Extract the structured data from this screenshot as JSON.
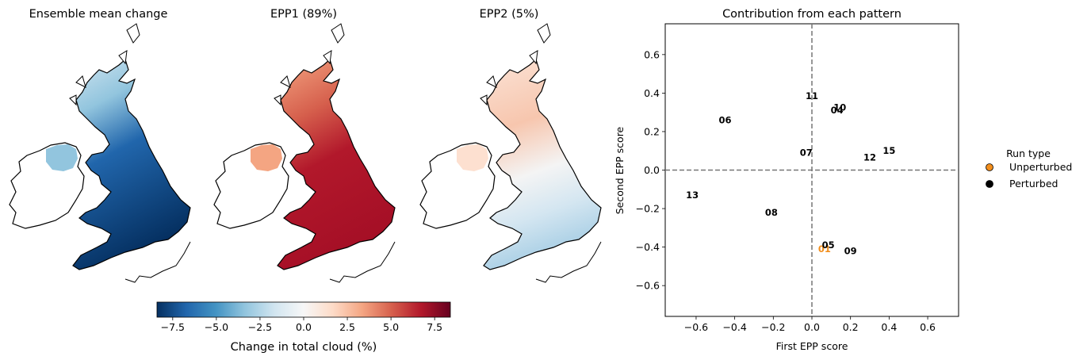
{
  "maps": [
    {
      "title": "Ensemble mean change",
      "palette": "blue"
    },
    {
      "title": "EPP1 (89%)",
      "palette": "red"
    },
    {
      "title": "EPP2 (5%)",
      "palette": "mixed"
    }
  ],
  "colorbar": {
    "label": "Change in total cloud (%)",
    "range": [
      -8.4,
      8.4
    ],
    "ticks": [
      "−7.5",
      "−5.0",
      "−2.5",
      "0.0",
      "2.5",
      "5.0",
      "7.5"
    ],
    "tick_values": [
      -7.5,
      -5.0,
      -2.5,
      0.0,
      2.5,
      5.0,
      7.5
    ],
    "colormap": "RdBu_r"
  },
  "chart_data": {
    "type": "scatter",
    "title": "Contribution from each pattern",
    "xlabel": "First EPP score",
    "ylabel": "Second EPP score",
    "xlim": [
      -0.76,
      0.76
    ],
    "ylim": [
      -0.76,
      0.76
    ],
    "xticks": [
      "−0.6",
      "−0.4",
      "−0.2",
      "0.0",
      "0.2",
      "0.4",
      "0.6"
    ],
    "xtick_values": [
      -0.6,
      -0.4,
      -0.2,
      0.0,
      0.2,
      0.4,
      0.6
    ],
    "yticks": [
      "−0.6",
      "−0.4",
      "−0.2",
      "0.0",
      "0.2",
      "0.4",
      "0.6"
    ],
    "ytick_values": [
      -0.6,
      -0.4,
      -0.2,
      0.0,
      0.2,
      0.4,
      0.6
    ],
    "reference_lines": {
      "x": 0.0,
      "y": 0.0,
      "style": "dashed",
      "color": "#777777"
    },
    "points": [
      {
        "label": "01",
        "x": 0.065,
        "y": -0.41,
        "run_type": "Unperturbed"
      },
      {
        "label": "04",
        "x": 0.13,
        "y": 0.31,
        "run_type": "Perturbed"
      },
      {
        "label": "05",
        "x": 0.085,
        "y": -0.39,
        "run_type": "Perturbed"
      },
      {
        "label": "06",
        "x": -0.45,
        "y": 0.26,
        "run_type": "Perturbed"
      },
      {
        "label": "07",
        "x": -0.03,
        "y": 0.09,
        "run_type": "Perturbed"
      },
      {
        "label": "08",
        "x": -0.21,
        "y": -0.22,
        "run_type": "Perturbed"
      },
      {
        "label": "09",
        "x": 0.2,
        "y": -0.42,
        "run_type": "Perturbed"
      },
      {
        "label": "10",
        "x": 0.145,
        "y": 0.325,
        "run_type": "Perturbed"
      },
      {
        "label": "11",
        "x": 0.0,
        "y": 0.385,
        "run_type": "Perturbed"
      },
      {
        "label": "12",
        "x": 0.3,
        "y": 0.065,
        "run_type": "Perturbed"
      },
      {
        "label": "13",
        "x": -0.62,
        "y": -0.13,
        "run_type": "Perturbed"
      },
      {
        "label": "15",
        "x": 0.4,
        "y": 0.1,
        "run_type": "Perturbed"
      }
    ],
    "legend": {
      "title": "Run type",
      "placement": "right, outside",
      "entries": [
        {
          "name": "Unperturbed",
          "color": "#f28e1c"
        },
        {
          "name": "Perturbed",
          "color": "#000000"
        }
      ]
    }
  }
}
